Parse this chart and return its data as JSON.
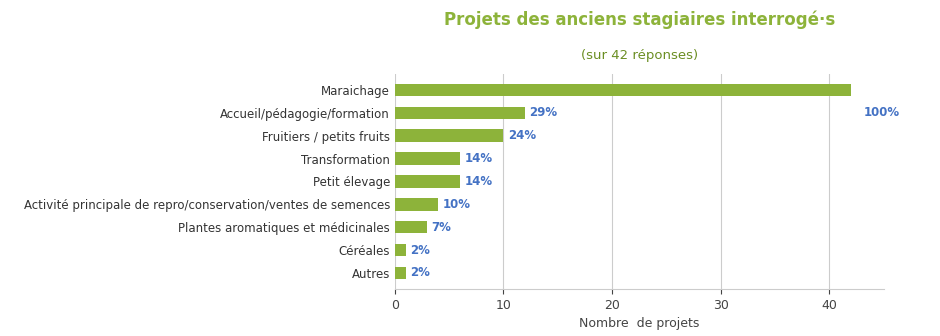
{
  "title": "Projets des anciens stagiaires interrogé·s",
  "subtitle": "(sur 42 réponses)",
  "title_color": "#8DB33A",
  "subtitle_color": "#6B8E23",
  "xlabel": "Nombre  de projets",
  "categories": [
    "Autres",
    "Céréales",
    "Plantes aromatiques et médicinales",
    "Activité principale de repro/conservation/ventes de semences",
    "Petit élevage",
    "Transformation",
    "Fruitiers / petits fruits",
    "Accueil/pédagogie/formation",
    "Maraichage"
  ],
  "values": [
    1,
    1,
    3,
    4,
    6,
    6,
    10,
    12,
    42
  ],
  "labels": [
    "2%",
    "2%",
    "7%",
    "10%",
    "14%",
    "14%",
    "24%",
    "29%",
    ""
  ],
  "bar_color": "#8DB33A",
  "label_color": "#4472C4",
  "annotation_100": "100%",
  "annotation_100_color": "#4472C4",
  "xlim": [
    0,
    45
  ],
  "xticks": [
    0,
    10,
    20,
    30,
    40
  ],
  "background_color": "#ffffff",
  "grid_color": "#cccccc",
  "figsize": [
    9.4,
    3.36
  ],
  "dpi": 100
}
